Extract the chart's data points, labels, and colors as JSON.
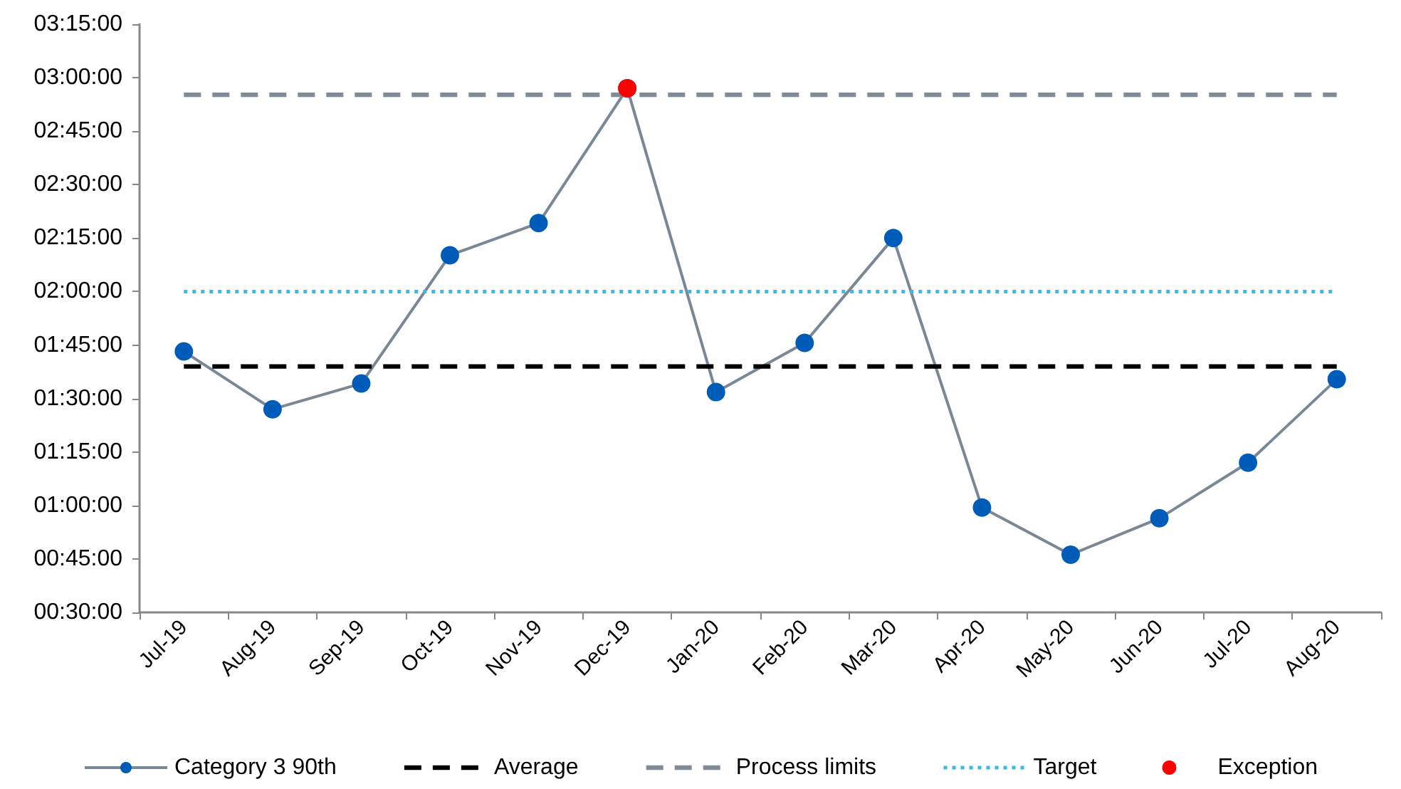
{
  "chart_data": {
    "type": "line",
    "categories": [
      "Jul-19",
      "Aug-19",
      "Sep-19",
      "Oct-19",
      "Nov-19",
      "Dec-19",
      "Jan-20",
      "Feb-20",
      "Mar-20",
      "Apr-20",
      "May-20",
      "Jun-20",
      "Jul-20",
      "Aug-20"
    ],
    "ylim": [
      0.5,
      3.25
    ],
    "yticks": [
      {
        "value": 0.5,
        "label": "00:30:00"
      },
      {
        "value": 0.75,
        "label": "00:45:00"
      },
      {
        "value": 1,
        "label": "01:00:00"
      },
      {
        "value": 1.25,
        "label": "01:15:00"
      },
      {
        "value": 1.5,
        "label": "01:30:00"
      },
      {
        "value": 1.75,
        "label": "01:45:00"
      },
      {
        "value": 2,
        "label": "02:00:00"
      },
      {
        "value": 2.25,
        "label": "02:15:00"
      },
      {
        "value": 2.5,
        "label": "02:30:00"
      },
      {
        "value": 2.75,
        "label": "02:45:00"
      },
      {
        "value": 3,
        "label": "03:00:00"
      },
      {
        "value": 3.25,
        "label": "03:15:00"
      }
    ],
    "grid": false,
    "legend": "bottom",
    "series": [
      {
        "name": "Category 3 90th",
        "color": "#7a8794",
        "colors": [
          "#005cb9",
          "#005cb9",
          "#005cb9",
          "#005cb9",
          "#005cb9",
          "#005cb9",
          "#005cb9",
          "#005cb9",
          "#005cb9",
          "#005cb9",
          "#005cb9",
          "#005cb9",
          "#005cb9",
          "#005cb9"
        ],
        "marker": "circle",
        "line_style": "solid",
        "values": [
          1.72,
          1.45,
          1.57,
          2.17,
          2.32,
          2.95,
          1.53,
          1.76,
          2.25,
          0.99,
          0.77,
          0.94,
          1.2,
          1.59
        ]
      },
      {
        "name": "Average",
        "color": "#000000",
        "marker": "none",
        "line_style": "dashed",
        "values": [
          1.65,
          1.65,
          1.65,
          1.65,
          1.65,
          1.65,
          1.65,
          1.65,
          1.65,
          1.65,
          1.65,
          1.65,
          1.65,
          1.65
        ]
      },
      {
        "name": "Process limits",
        "color": "#7f8b97",
        "marker": "none",
        "line_style": "dashed",
        "values": [
          2.92,
          2.92,
          2.92,
          2.92,
          2.92,
          2.92,
          2.92,
          2.92,
          2.92,
          2.92,
          2.92,
          2.92,
          2.92,
          2.92
        ]
      },
      {
        "name": "Target",
        "color": "#3db7e4",
        "marker": "none",
        "line_style": "dotted",
        "values": [
          2,
          2,
          2,
          2,
          2,
          2,
          2,
          2,
          2,
          2,
          2,
          2,
          2,
          2
        ]
      },
      {
        "name": "Exception",
        "type": "scatter",
        "color": "#ff0000",
        "marker": "circle",
        "values": [
          null,
          null,
          null,
          null,
          null,
          2.95,
          null,
          null,
          null,
          null,
          null,
          null,
          null,
          null
        ]
      }
    ]
  }
}
